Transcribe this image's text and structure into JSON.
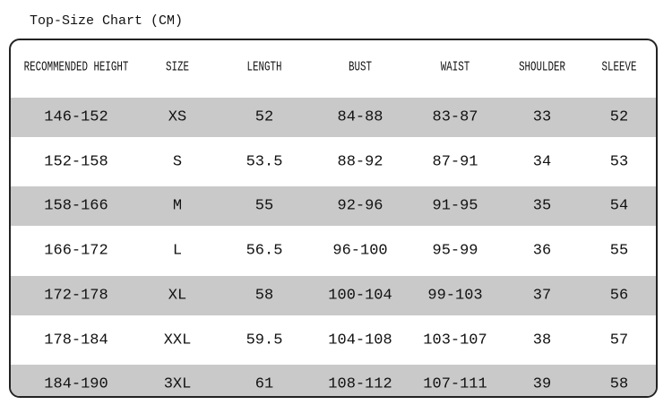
{
  "title": "Top-Size Chart (CM)",
  "table": {
    "header": [
      "RECOMMENDED HEIGHT",
      "SIZE",
      "LENGTH",
      "BUST",
      "WAIST",
      "SHOULDER",
      "SLEEVE"
    ],
    "rows": [
      [
        "146-152",
        "XS",
        "52",
        "84-88",
        "83-87",
        "33",
        "52"
      ],
      [
        "152-158",
        "S",
        "53.5",
        "88-92",
        "87-91",
        "34",
        "53"
      ],
      [
        "158-166",
        "M",
        "55",
        "92-96",
        "91-95",
        "35",
        "54"
      ],
      [
        "166-172",
        "L",
        "56.5",
        "96-100",
        "95-99",
        "36",
        "55"
      ],
      [
        "172-178",
        "XL",
        "58",
        "100-104",
        "99-103",
        "37",
        "56"
      ],
      [
        "178-184",
        "XXL",
        "59.5",
        "104-108",
        "103-107",
        "38",
        "57"
      ],
      [
        "184-190",
        "3XL",
        "61",
        "108-112",
        "107-111",
        "39",
        "58"
      ]
    ]
  }
}
